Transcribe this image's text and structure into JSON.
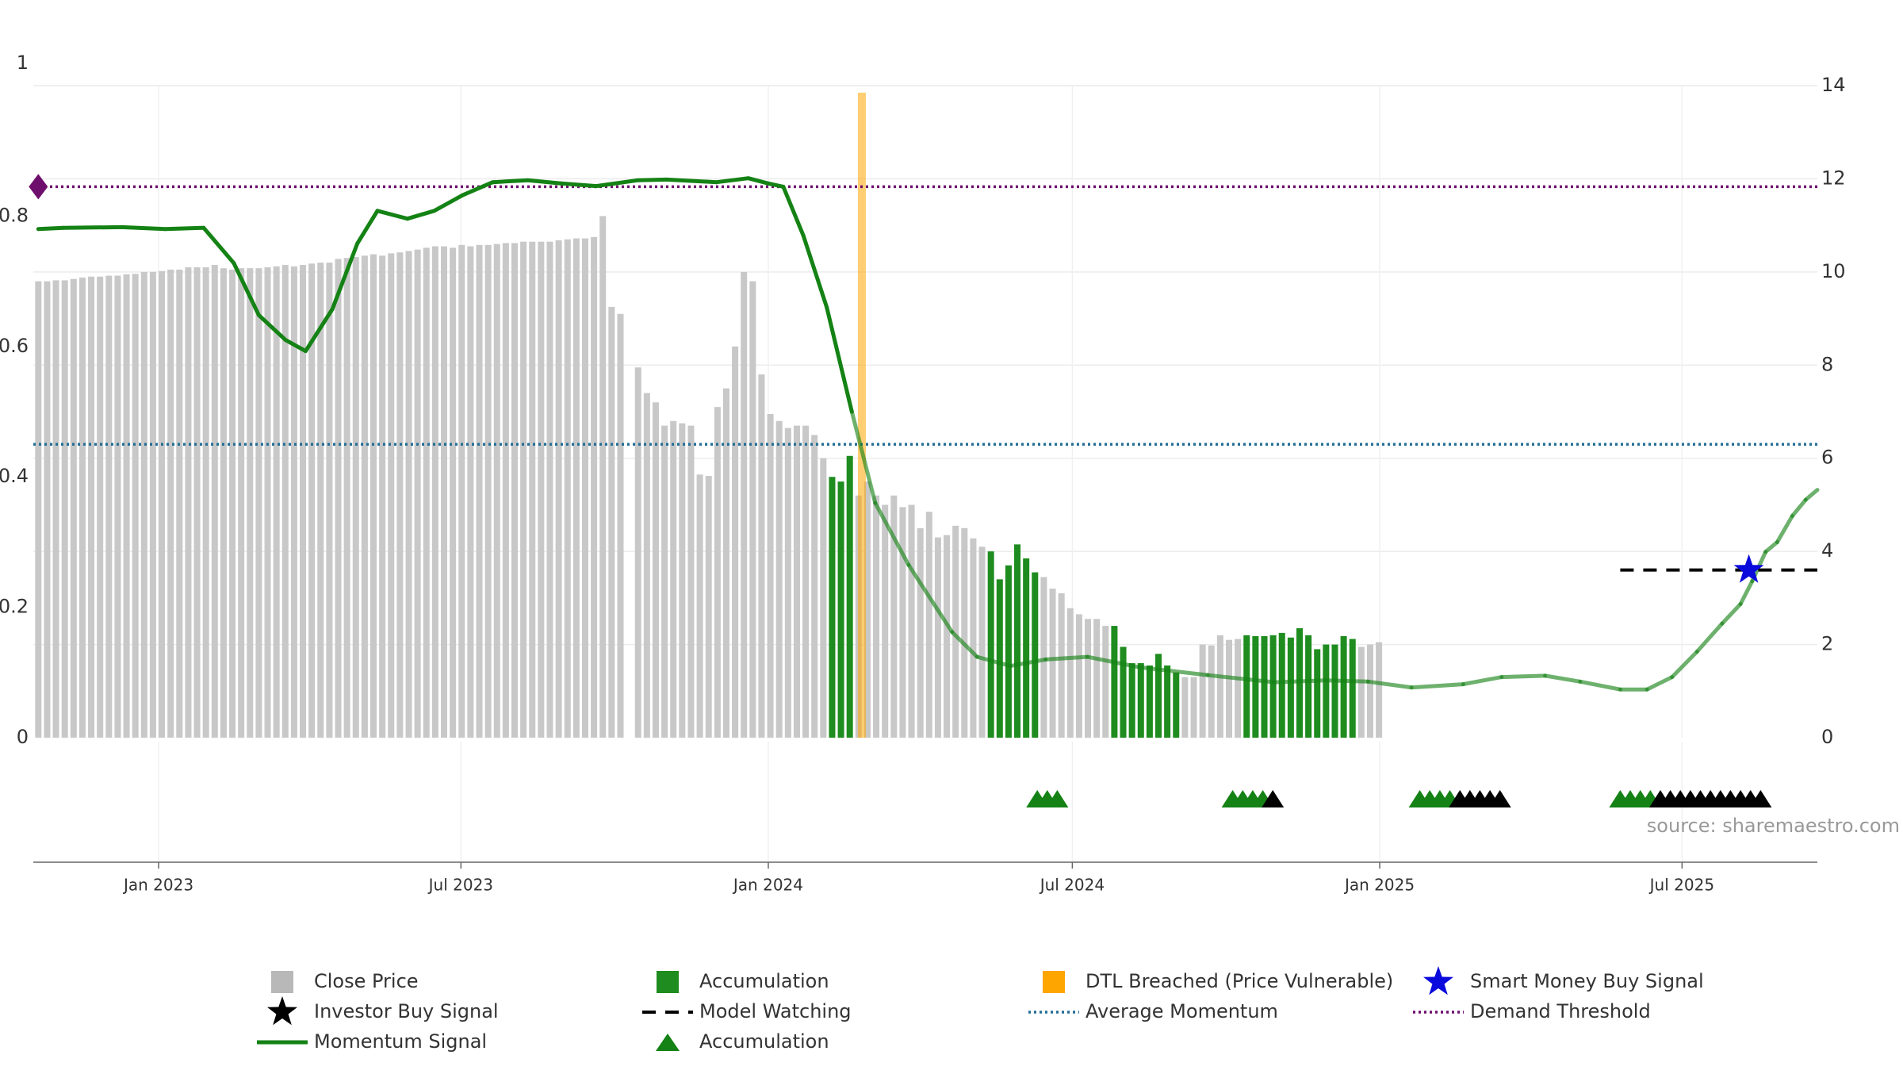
{
  "chart_data": {
    "type": "bar",
    "source_label": "source: sharemaestro.com",
    "left_axis": {
      "ylim": [
        0,
        1
      ],
      "ticks": [
        0,
        0.2,
        0.4,
        0.6,
        0.8,
        1
      ],
      "tick_labels": [
        "0",
        "0.2",
        "0.4",
        "0.6",
        "0.8",
        "1"
      ]
    },
    "right_axis": {
      "ylim": [
        0,
        14
      ],
      "ticks": [
        0,
        2,
        4,
        6,
        8,
        10,
        12,
        14
      ],
      "tick_labels": [
        "0",
        "2",
        "4",
        "6",
        "8",
        "10",
        "12",
        "14"
      ]
    },
    "x_axis": {
      "start": "2022-10-18",
      "end": "2025-09-20",
      "ticks": [
        "2023-01-01",
        "2023-07-01",
        "2024-01-01",
        "2024-07-01",
        "2025-01-01",
        "2025-07-01"
      ],
      "tick_labels": [
        "Jan 2023",
        "Jul 2023",
        "Jan 2024",
        "Jul 2024",
        "Jan 2025",
        "Jul 2025"
      ]
    },
    "close_price": {
      "start": "2022-10-21",
      "interval_days": 5.28,
      "values": [
        9.8,
        9.8,
        9.82,
        9.82,
        9.85,
        9.88,
        9.9,
        9.9,
        9.92,
        9.92,
        9.95,
        9.96,
        10.0,
        10.0,
        10.02,
        10.05,
        10.05,
        10.1,
        10.1,
        10.1,
        10.15,
        10.08,
        10.05,
        10.08,
        10.08,
        10.08,
        10.1,
        10.12,
        10.15,
        10.12,
        10.15,
        10.18,
        10.2,
        10.2,
        10.28,
        10.3,
        10.32,
        10.35,
        10.38,
        10.35,
        10.4,
        10.42,
        10.45,
        10.48,
        10.52,
        10.55,
        10.55,
        10.52,
        10.58,
        10.55,
        10.58,
        10.58,
        10.6,
        10.62,
        10.62,
        10.65,
        10.65,
        10.65,
        10.65,
        10.68,
        10.7,
        10.72,
        10.72,
        10.75,
        11.2,
        9.25,
        9.1,
        0,
        7.95,
        7.4,
        7.2,
        6.7,
        6.8,
        6.75,
        6.7,
        5.65,
        5.62,
        7.1,
        7.5,
        8.4,
        10.0,
        9.8,
        7.8,
        6.95,
        6.8,
        6.65,
        6.7,
        6.7,
        6.5,
        6.0,
        5.6,
        5.5,
        6.05,
        5.2,
        5.5,
        5.2,
        5.0,
        5.2,
        4.95,
        5.0,
        4.5,
        4.85,
        4.3,
        4.35,
        4.55,
        4.5,
        4.28,
        4.1,
        4.0,
        3.4,
        3.7,
        4.15,
        3.85,
        3.55,
        3.45,
        3.2,
        3.1,
        2.78,
        2.65,
        2.55,
        2.55,
        2.4,
        2.4,
        1.95,
        1.6,
        1.6,
        1.55,
        1.8,
        1.55,
        1.4,
        1.3,
        1.3,
        2.0,
        1.98,
        2.2,
        2.1,
        2.12,
        2.2,
        2.18,
        2.18,
        2.2,
        2.25,
        2.15,
        2.35,
        2.2,
        1.9,
        2.0,
        2.0,
        2.18,
        2.12,
        1.95,
        2.0,
        2.05
      ],
      "color": "#c8c8c8"
    },
    "accumulation_bars": {
      "color": "#1e8c1e",
      "indices": [
        90,
        91,
        92,
        108,
        109,
        110,
        111,
        112,
        113,
        122,
        123,
        124,
        125,
        126,
        127,
        128,
        129,
        137,
        138,
        139,
        140,
        141,
        142,
        143,
        144,
        145,
        146,
        147,
        148,
        149
      ]
    },
    "dtl_breached": {
      "date": "2024-02-26",
      "color": "#ffa500"
    },
    "momentum_signal": {
      "color": "#148214",
      "points": [
        [
          "2022-10-21",
          0.78
        ],
        [
          "2022-11-05",
          0.782
        ],
        [
          "2022-12-10",
          0.783
        ],
        [
          "2023-01-05",
          0.78
        ],
        [
          "2023-01-28",
          0.782
        ],
        [
          "2023-02-15",
          0.728
        ],
        [
          "2023-03-02",
          0.648
        ],
        [
          "2023-03-18",
          0.61
        ],
        [
          "2023-03-30",
          0.593
        ],
        [
          "2023-04-15",
          0.657
        ],
        [
          "2023-04-30",
          0.758
        ],
        [
          "2023-05-12",
          0.808
        ],
        [
          "2023-05-30",
          0.796
        ],
        [
          "2023-06-15",
          0.808
        ],
        [
          "2023-07-02",
          0.832
        ],
        [
          "2023-07-20",
          0.852
        ],
        [
          "2023-08-10",
          0.855
        ],
        [
          "2023-08-30",
          0.85
        ],
        [
          "2023-09-20",
          0.846
        ],
        [
          "2023-10-15",
          0.855
        ],
        [
          "2023-11-01",
          0.856
        ],
        [
          "2023-12-01",
          0.852
        ],
        [
          "2023-12-20",
          0.858
        ],
        [
          "2024-01-01",
          0.85
        ],
        [
          "2024-01-10",
          0.845
        ],
        [
          "2024-01-22",
          0.77
        ],
        [
          "2024-02-05",
          0.66
        ],
        [
          "2024-02-20",
          0.5
        ],
        [
          "2024-03-05",
          0.36
        ],
        [
          "2024-03-25",
          0.265
        ],
        [
          "2024-04-20",
          0.162
        ],
        [
          "2024-05-05",
          0.124
        ],
        [
          "2024-05-25",
          0.11
        ],
        [
          "2024-06-15",
          0.12
        ],
        [
          "2024-07-10",
          0.124
        ],
        [
          "2024-08-10",
          0.108
        ],
        [
          "2024-09-20",
          0.096
        ],
        [
          "2024-10-30",
          0.085
        ],
        [
          "2024-11-30",
          0.088
        ],
        [
          "2024-12-25",
          0.086
        ],
        [
          "2025-01-20",
          0.077
        ],
        [
          "2025-02-20",
          0.082
        ],
        [
          "2025-03-15",
          0.093
        ],
        [
          "2025-04-10",
          0.095
        ],
        [
          "2025-05-01",
          0.086
        ],
        [
          "2025-05-25",
          0.074
        ],
        [
          "2025-06-10",
          0.074
        ],
        [
          "2025-06-25",
          0.093
        ],
        [
          "2025-07-10",
          0.132
        ],
        [
          "2025-07-25",
          0.175
        ],
        [
          "2025-08-05",
          0.205
        ],
        [
          "2025-08-12",
          0.24
        ],
        [
          "2025-08-20",
          0.285
        ],
        [
          "2025-08-27",
          0.3
        ],
        [
          "2025-09-05",
          0.34
        ],
        [
          "2025-09-13",
          0.365
        ],
        [
          "2025-09-20",
          0.38
        ]
      ]
    },
    "average_momentum": {
      "value": 0.45,
      "color": "#236e96"
    },
    "demand_threshold": {
      "value": 0.845,
      "color": "#6e0f6e"
    },
    "model_watching": {
      "start": "2025-05-25",
      "end": "2025-09-20",
      "price": 3.6,
      "color": "#000000"
    },
    "smart_money_buy_signal": {
      "date": "2025-08-10",
      "price": 3.6,
      "color": "#0a0adc"
    },
    "accumulation_markers": {
      "color": "#148214",
      "dates": [
        "2024-06-10",
        "2024-06-16",
        "2024-06-22",
        "2024-10-05",
        "2024-10-11",
        "2024-10-17",
        "2024-10-23",
        "2025-01-25",
        "2025-01-31",
        "2025-02-06",
        "2025-02-12",
        "2025-05-25",
        "2025-05-31",
        "2025-06-06",
        "2025-06-12"
      ]
    },
    "investor_buy_markers": {
      "color": "#000000",
      "dates": [
        "2024-10-29",
        "2025-02-18",
        "2025-02-24",
        "2025-03-02",
        "2025-03-08",
        "2025-03-14",
        "2025-06-18",
        "2025-06-24",
        "2025-06-30",
        "2025-07-06",
        "2025-07-12",
        "2025-07-18",
        "2025-07-24",
        "2025-07-30",
        "2025-08-05",
        "2025-08-11",
        "2025-08-17"
      ]
    },
    "start_marker": {
      "date": "2022-10-21",
      "value": 0.845,
      "color": "#6e0f6e"
    },
    "legend": {
      "position": "bottom",
      "items": [
        {
          "key": "close-price",
          "label": "Close Price",
          "symbol": "square",
          "color": "#b8b8b8"
        },
        {
          "key": "accumulation-bar",
          "label": "Accumulation",
          "symbol": "square",
          "color": "#1e8c1e"
        },
        {
          "key": "dtl-breached",
          "label": "DTL Breached (Price Vulnerable)",
          "symbol": "square",
          "color": "#ffa500"
        },
        {
          "key": "smart-money-buy",
          "label": "Smart Money Buy Signal",
          "symbol": "star",
          "color": "#0a0adc"
        },
        {
          "key": "investor-buy",
          "label": "Investor Buy Signal",
          "symbol": "star",
          "color": "#000000"
        },
        {
          "key": "model-watching",
          "label": "Model Watching",
          "symbol": "dash",
          "color": "#000000"
        },
        {
          "key": "average-momentum",
          "label": "Average Momentum",
          "symbol": "dot",
          "color": "#236e96"
        },
        {
          "key": "demand-threshold",
          "label": "Demand Threshold",
          "symbol": "dot",
          "color": "#6e0f6e"
        },
        {
          "key": "momentum-signal",
          "label": "Momentum Signal",
          "symbol": "line",
          "color": "#148214"
        },
        {
          "key": "accumulation-marker",
          "label": "Accumulation",
          "symbol": "triangle",
          "color": "#148214"
        }
      ]
    }
  }
}
